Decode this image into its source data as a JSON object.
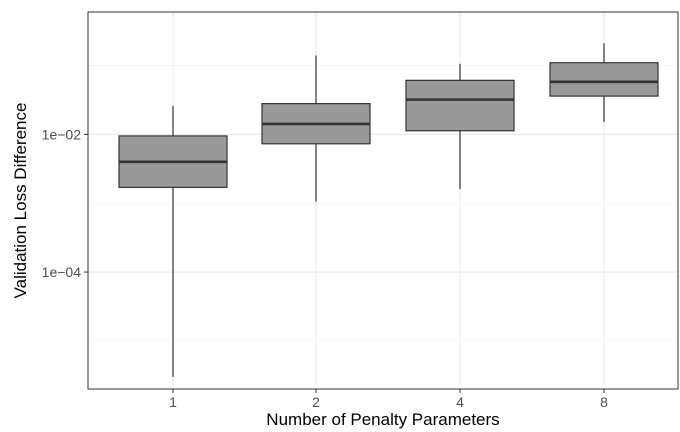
{
  "chart_data": {
    "type": "box",
    "title": "",
    "xlabel": "Number of Penalty Parameters",
    "ylabel": "Validation Loss Difference",
    "y_scale": "log10",
    "ylim": [
      2e-06,
      0.6
    ],
    "y_ticks": [
      {
        "value": 0.01,
        "label": "1e−02"
      },
      {
        "value": 0.0001,
        "label": "1e−04"
      }
    ],
    "grid": true,
    "legend": "none",
    "categories": [
      "1",
      "2",
      "4",
      "8"
    ],
    "boxes": [
      {
        "category": "1",
        "min": 3e-06,
        "q1": 0.0017,
        "median": 0.004,
        "q3": 0.0095,
        "max": 0.026
      },
      {
        "category": "2",
        "min": 0.00105,
        "q1": 0.0073,
        "median": 0.0142,
        "q3": 0.028,
        "max": 0.14
      },
      {
        "category": "4",
        "min": 0.0016,
        "q1": 0.0113,
        "median": 0.032,
        "q3": 0.061,
        "max": 0.106
      },
      {
        "category": "8",
        "min": 0.0152,
        "q1": 0.036,
        "median": 0.058,
        "q3": 0.11,
        "max": 0.21
      }
    ],
    "colors": {
      "box_fill": "#999999",
      "box_stroke": "#333333",
      "median": "#333333",
      "grid_major": "#ebebeb",
      "grid_minor": "#f5f5f5",
      "panel_border": "#333333"
    }
  }
}
